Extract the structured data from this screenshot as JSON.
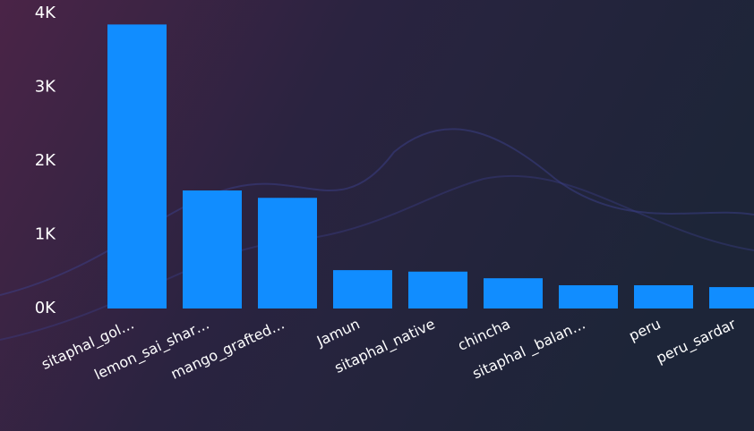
{
  "chart_data": {
    "type": "bar",
    "categories": [
      "sitaphal_gol…",
      "lemon_sai_shar…",
      "mango_grafted…",
      "Jamun",
      "sitaphal_native",
      "chincha",
      "sitaphal _balan…",
      "peru",
      "peru_sardar"
    ],
    "values": [
      3850,
      1600,
      1500,
      520,
      500,
      410,
      315,
      315,
      290
    ],
    "color": "#118dff",
    "ylim": [
      0,
      4000
    ],
    "yticks": [
      {
        "value": 0,
        "label": "0K"
      },
      {
        "value": 1000,
        "label": "1K"
      },
      {
        "value": 2000,
        "label": "2K"
      },
      {
        "value": 3000,
        "label": "3K"
      },
      {
        "value": 4000,
        "label": "4K"
      }
    ]
  }
}
